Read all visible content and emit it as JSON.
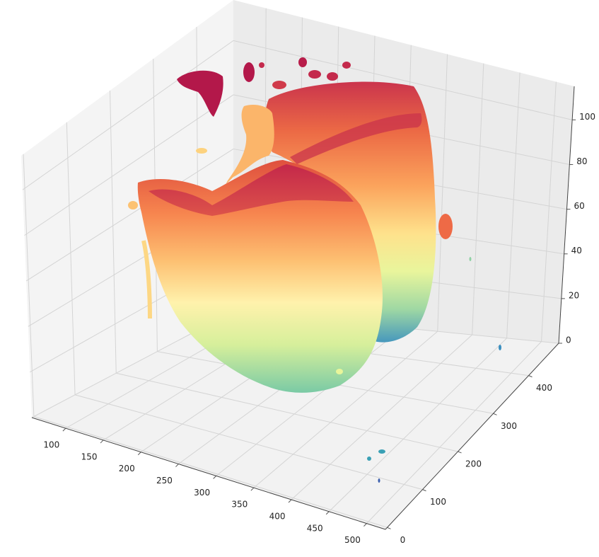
{
  "chart_data": {
    "type": "scatter3d",
    "xlim": [
      55,
      525
    ],
    "ylim": [
      -5,
      485
    ],
    "zlim": [
      0,
      115
    ],
    "xticks": [
      100,
      150,
      200,
      250,
      300,
      350,
      400,
      450,
      500
    ],
    "yticks": [
      0,
      100,
      200,
      300,
      400
    ],
    "zticks": [
      0,
      20,
      40,
      60,
      80,
      100
    ],
    "grid": true
  }
}
